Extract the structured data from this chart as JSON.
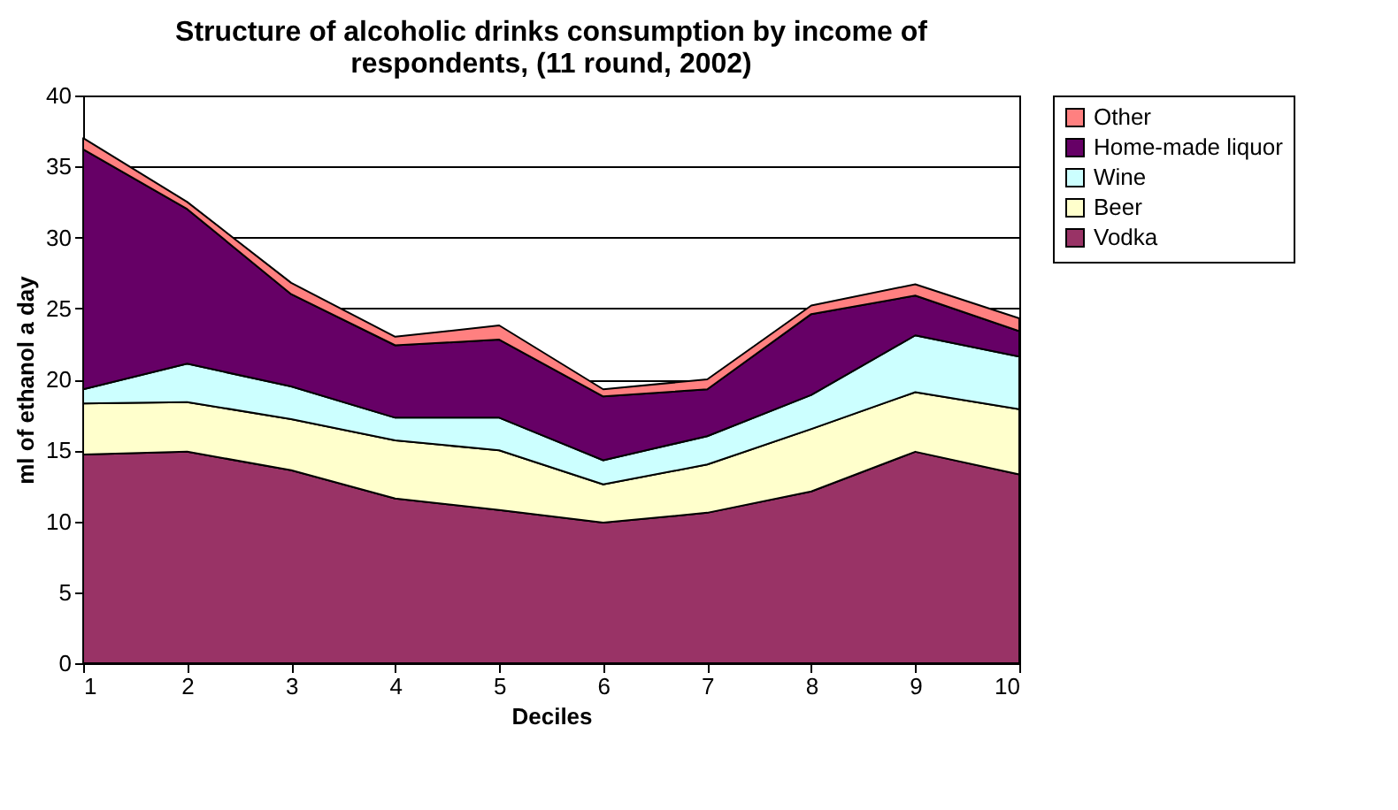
{
  "chart_data": {
    "type": "area",
    "stacked": true,
    "title": [
      "Structure of alcoholic drinks consumption by income of",
      "respondents, (11 round, 2002)"
    ],
    "xlabel": "Deciles",
    "ylabel": "ml of ethanol a day",
    "x": [
      1,
      2,
      3,
      4,
      5,
      6,
      7,
      8,
      9,
      10
    ],
    "xlim": [
      1,
      10
    ],
    "xticks": [
      1,
      2,
      3,
      4,
      5,
      6,
      7,
      8,
      9,
      10
    ],
    "ylim": [
      0,
      40
    ],
    "yticks": [
      0,
      5,
      10,
      15,
      20,
      25,
      30,
      35,
      40
    ],
    "grid": "y",
    "legend": "right",
    "series": [
      {
        "name": "Vodka",
        "color": "#993366",
        "values": [
          14.7,
          14.9,
          13.6,
          11.6,
          10.8,
          9.9,
          10.6,
          12.1,
          14.9,
          13.3
        ]
      },
      {
        "name": "Beer",
        "color": "#ffffcc",
        "values": [
          3.6,
          3.5,
          3.6,
          4.1,
          4.2,
          2.7,
          3.4,
          4.4,
          4.2,
          4.6
        ]
      },
      {
        "name": "Wine",
        "color": "#ccffff",
        "values": [
          1.0,
          2.7,
          2.3,
          1.6,
          2.3,
          1.7,
          2.0,
          2.4,
          4.0,
          3.7
        ]
      },
      {
        "name": "Home-made liquor",
        "color": "#660066",
        "values": [
          16.9,
          10.9,
          6.5,
          5.1,
          5.5,
          4.5,
          3.3,
          5.7,
          2.8,
          1.8
        ]
      },
      {
        "name": "Other",
        "color": "#ff8080",
        "values": [
          0.8,
          0.5,
          0.8,
          0.6,
          1.0,
          0.5,
          0.7,
          0.6,
          0.8,
          0.9
        ]
      }
    ]
  }
}
